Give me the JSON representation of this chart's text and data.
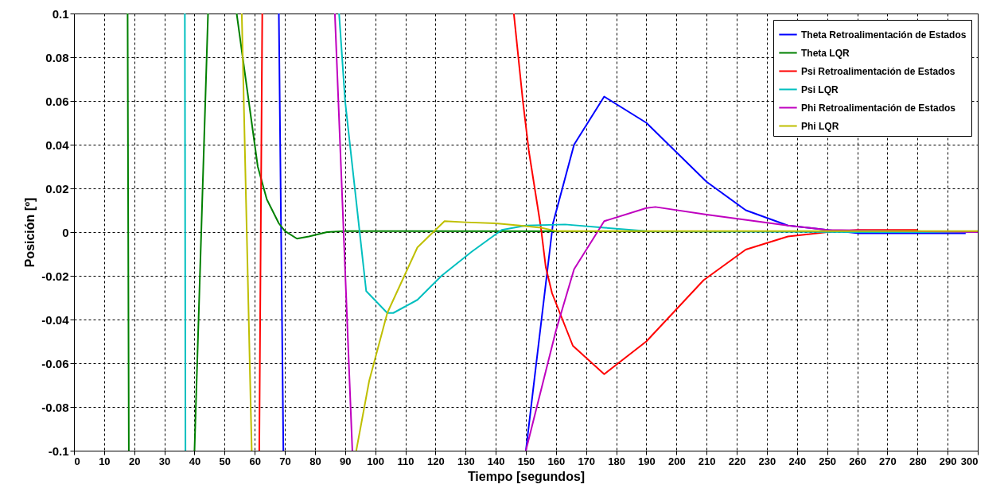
{
  "chart_data": {
    "type": "line",
    "xlabel": "Tiempo [segundos]",
    "ylabel": "Posición [º]",
    "xlim": [
      0,
      300
    ],
    "xticks": [
      0,
      10,
      20,
      30,
      40,
      50,
      60,
      70,
      80,
      90,
      100,
      110,
      120,
      130,
      140,
      150,
      160,
      170,
      180,
      190,
      200,
      210,
      220,
      230,
      240,
      250,
      260,
      270,
      280,
      290,
      300
    ],
    "ylim": [
      -0.1,
      0.1
    ],
    "yticks": [
      -0.1,
      -0.08,
      -0.06,
      -0.04,
      -0.02,
      0,
      0.02,
      0.04,
      0.06,
      0.08,
      0.1
    ],
    "grid": true,
    "legend": "top right",
    "line_style": "solid",
    "marker": "none",
    "series": [
      {
        "name": "Theta Retroalimentación de Estados",
        "color": "#0000ff",
        "x": [
          68,
          69.5,
          110,
          150,
          159,
          166,
          176,
          190,
          210,
          223,
          237,
          250,
          260,
          296
        ],
        "values": [
          0.1,
          -0.1,
          null,
          -0.1,
          0.004,
          0.04,
          0.062,
          0.05,
          0.023,
          0.01,
          0.003,
          0.001,
          -0.0005,
          -0.0005
        ]
      },
      {
        "name": "Theta LQR",
        "color": "#008000",
        "x": [
          17.8,
          18.2,
          30,
          40,
          44.5,
          50,
          54,
          58,
          61,
          64,
          68,
          70,
          74,
          78,
          84,
          90,
          218
        ],
        "values": [
          0.1,
          -0.1,
          null,
          -0.1,
          0.1,
          null,
          0.1,
          0.06,
          0.03,
          0.015,
          0.004,
          0.0005,
          -0.003,
          -0.002,
          0,
          0.0005,
          0.0003
        ]
      },
      {
        "name": "Psi Retroalimentación de Estados",
        "color": "#ff0000",
        "x": [
          61.5,
          62.5,
          100,
          146,
          149,
          151,
          155,
          156.6,
          158.7,
          165.6,
          176,
          190,
          209,
          223,
          237,
          250,
          260,
          280
        ],
        "values": [
          -0.1,
          0.1,
          null,
          0.1,
          0.06,
          0.037,
          0.002,
          -0.016,
          -0.028,
          -0.052,
          -0.065,
          -0.05,
          -0.022,
          -0.008,
          -0.002,
          0,
          0.001,
          0.001
        ]
      },
      {
        "name": "Psi LQR",
        "color": "#00bfbf",
        "x": [
          36.8,
          37,
          60,
          88,
          90,
          97,
          104,
          106,
          114,
          122,
          132,
          142,
          150,
          163,
          176,
          190,
          260,
          300
        ],
        "values": [
          0.1,
          -0.1,
          null,
          0.1,
          0.06,
          -0.027,
          -0.037,
          -0.037,
          -0.031,
          -0.02,
          -0.009,
          0.001,
          0.003,
          0.0035,
          0.002,
          0.0005,
          0,
          0
        ]
      },
      {
        "name": "Phi Retroalimentación de Estados",
        "color": "#bf00bf",
        "x": [
          86.6,
          92.4,
          120,
          150,
          160,
          166,
          176,
          190,
          193,
          210,
          237,
          250,
          300
        ],
        "values": [
          0.1,
          -0.1,
          null,
          -0.1,
          -0.045,
          -0.017,
          0.005,
          0.011,
          0.0115,
          0.008,
          0.003,
          0.001,
          0
        ]
      },
      {
        "name": "Phi LQR",
        "color": "#bfbf00",
        "x": [
          55.7,
          59,
          75,
          93.7,
          98,
          104,
          108,
          114,
          123,
          130,
          140,
          148,
          155,
          160,
          300
        ],
        "values": [
          0.1,
          -0.1,
          null,
          -0.1,
          -0.068,
          -0.037,
          -0.025,
          -0.007,
          0.005,
          0.0045,
          0.004,
          0.003,
          0.002,
          0.0005,
          0.0005
        ]
      }
    ]
  }
}
